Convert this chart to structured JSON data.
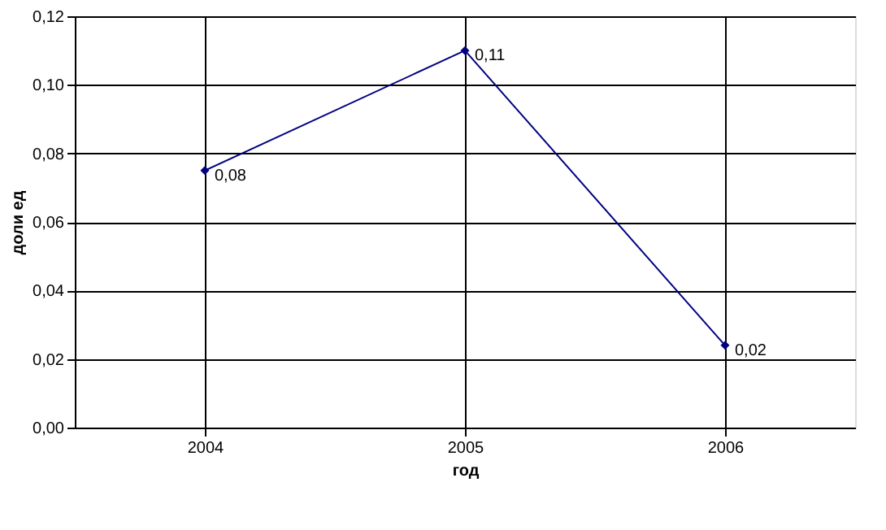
{
  "chart_data": {
    "type": "line",
    "xlabel": "год",
    "ylabel": "доли ед",
    "categories": [
      "2004",
      "2005",
      "2006"
    ],
    "series": [
      {
        "color": "#000080",
        "values": [
          0.075,
          0.11,
          0.024
        ],
        "value_labels": [
          "0,08",
          "0,11",
          "0,02"
        ]
      }
    ],
    "ylim": [
      0,
      0.12
    ],
    "yticks": [
      {
        "value": 0,
        "label": "0,00"
      },
      {
        "value": 0.02,
        "label": "0,02"
      },
      {
        "value": 0.04,
        "label": "0,04"
      },
      {
        "value": 0.06,
        "label": "0,06"
      },
      {
        "value": 0.08,
        "label": "0,08"
      },
      {
        "value": 0.1,
        "label": "0,10"
      },
      {
        "value": 0.12,
        "label": "0,12"
      }
    ],
    "grid": true,
    "marker": "diamond",
    "line_style": "solid"
  }
}
